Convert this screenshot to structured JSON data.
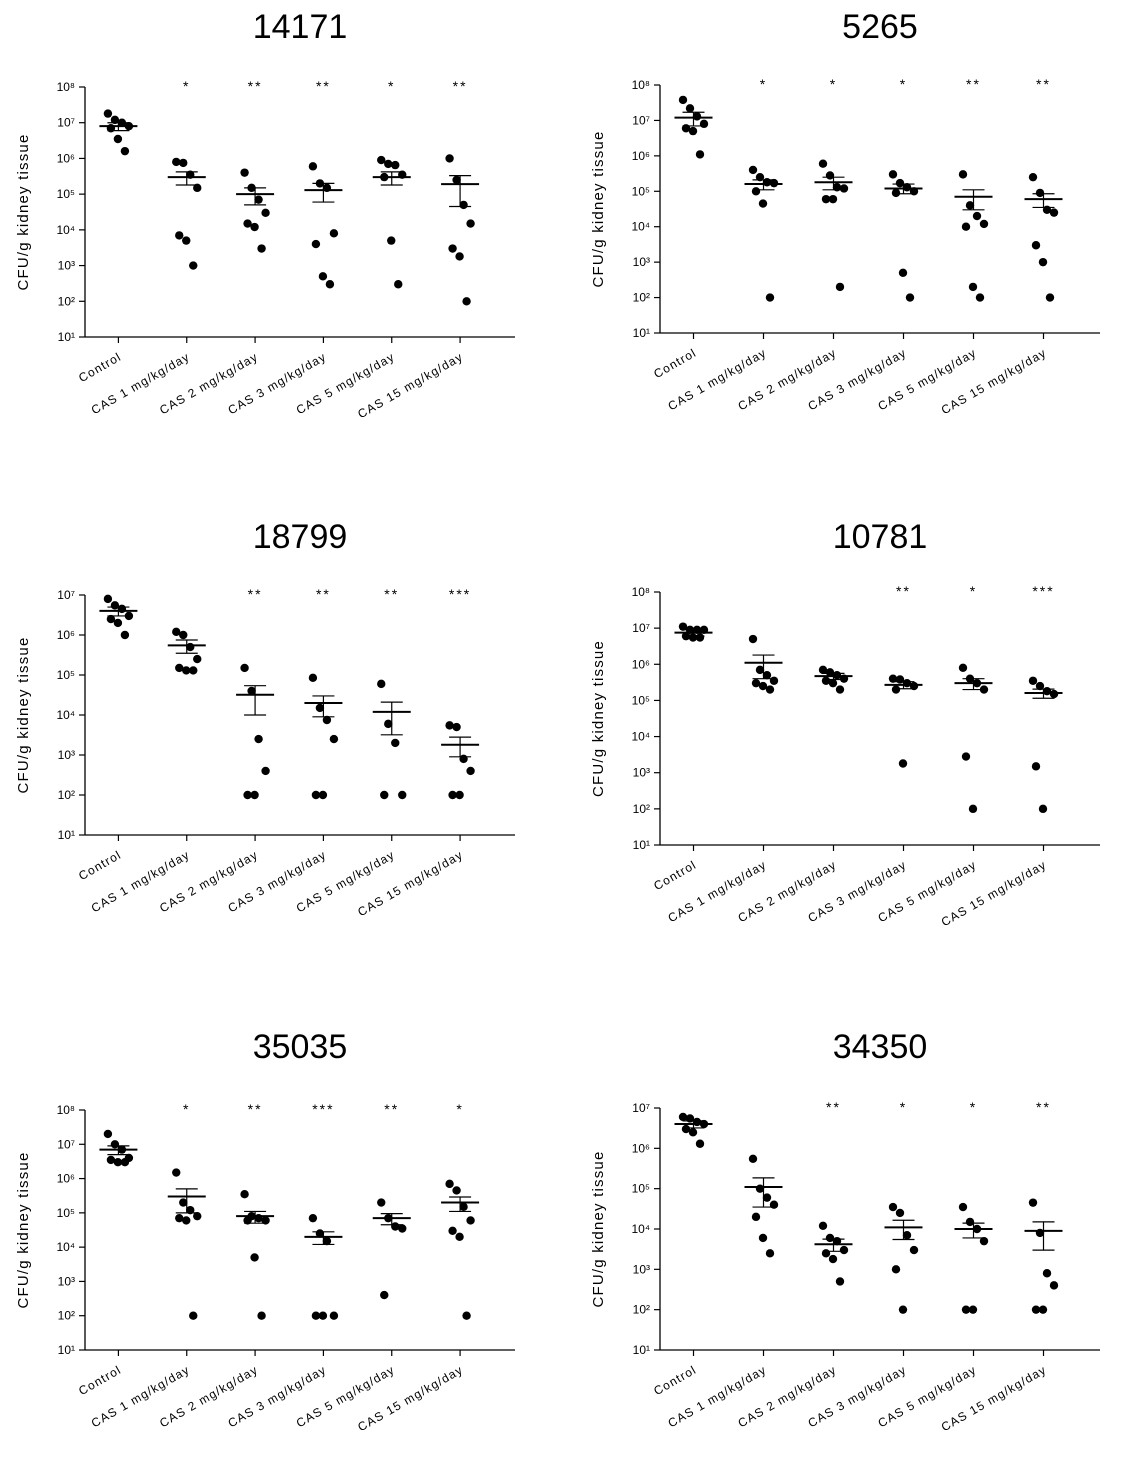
{
  "figure": {
    "ylabel": "CFU/g kidney tissue",
    "categories": [
      "Control",
      "CAS 1 mg/kg/day",
      "CAS 2 mg/kg/day",
      "CAS 3 mg/kg/day",
      "CAS 5 mg/kg/day",
      "CAS 15 mg/kg/day"
    ]
  },
  "chart_data": [
    {
      "type": "scatter",
      "title": "14171",
      "ylabel": "CFU/g kidney tissue",
      "yscale": "log",
      "ylim": [
        10,
        100000000
      ],
      "ytick_exponents": [
        1,
        2,
        3,
        4,
        5,
        6,
        7,
        8
      ],
      "categories": [
        "Control",
        "CAS 1 mg/kg/day",
        "CAS 2 mg/kg/day",
        "CAS 3 mg/kg/day",
        "CAS 5 mg/kg/day",
        "CAS 15 mg/kg/day"
      ],
      "significance": [
        "",
        "*",
        "**",
        "**",
        "*",
        "**"
      ],
      "mean": [
        8000000,
        300000,
        100000,
        130000,
        300000,
        190000
      ],
      "sem_low": [
        6000000,
        180000,
        50000,
        60000,
        180000,
        45000
      ],
      "sem_high": [
        10000000,
        420000,
        150000,
        200000,
        420000,
        330000
      ],
      "points": [
        [
          18000000,
          12000000,
          10000000,
          8000000,
          7000000,
          3500000,
          1600000
        ],
        [
          800000,
          750000,
          350000,
          150000,
          7000,
          5000,
          1000
        ],
        [
          400000,
          150000,
          70000,
          30000,
          15000,
          12000,
          3000
        ],
        [
          600000,
          200000,
          150000,
          8000,
          4000,
          500,
          300
        ],
        [
          900000,
          700000,
          650000,
          350000,
          300000,
          5000,
          300
        ],
        [
          1000000,
          250000,
          50000,
          15000,
          3000,
          1800,
          100
        ]
      ]
    },
    {
      "type": "scatter",
      "title": "5265",
      "ylabel": "CFU/g kidney tissue",
      "yscale": "log",
      "ylim": [
        10,
        100000000
      ],
      "ytick_exponents": [
        1,
        2,
        3,
        4,
        5,
        6,
        7,
        8
      ],
      "categories": [
        "Control",
        "CAS 1 mg/kg/day",
        "CAS 2 mg/kg/day",
        "CAS 3 mg/kg/day",
        "CAS 5 mg/kg/day",
        "CAS 15 mg/kg/day"
      ],
      "significance": [
        "",
        "*",
        "*",
        "*",
        "**",
        "**"
      ],
      "mean": [
        12000000,
        160000,
        180000,
        120000,
        70000,
        60000
      ],
      "sem_low": [
        7000000,
        110000,
        110000,
        85000,
        30000,
        35000
      ],
      "sem_high": [
        17000000,
        210000,
        250000,
        160000,
        110000,
        85000
      ],
      "points": [
        [
          38000000,
          22000000,
          13000000,
          8000000,
          6000000,
          5000000,
          1100000
        ],
        [
          400000,
          250000,
          180000,
          170000,
          100000,
          45000,
          100
        ],
        [
          600000,
          280000,
          130000,
          120000,
          60000,
          60000,
          200
        ],
        [
          300000,
          170000,
          130000,
          100000,
          90000,
          500,
          100
        ],
        [
          300000,
          40000,
          20000,
          12000,
          10000,
          200,
          100
        ],
        [
          250000,
          90000,
          30000,
          25000,
          3000,
          1000,
          100
        ]
      ]
    },
    {
      "type": "scatter",
      "title": "18799",
      "ylabel": "CFU/g kidney tissue",
      "yscale": "log",
      "ylim": [
        10,
        10000000
      ],
      "ytick_exponents": [
        1,
        2,
        3,
        4,
        5,
        6,
        7
      ],
      "categories": [
        "Control",
        "CAS 1 mg/kg/day",
        "CAS 2 mg/kg/day",
        "CAS 3 mg/kg/day",
        "CAS 5 mg/kg/day",
        "CAS 15 mg/kg/day"
      ],
      "significance": [
        "",
        "",
        "**",
        "**",
        "**",
        "***"
      ],
      "mean": [
        4000000,
        550000,
        32000,
        20000,
        12000,
        1800
      ],
      "sem_low": [
        3000000,
        350000,
        10000,
        9000,
        3200,
        900
      ],
      "sem_high": [
        5000000,
        750000,
        54000,
        30000,
        21000,
        2800
      ],
      "points": [
        [
          8000000,
          5500000,
          4500000,
          3000000,
          2500000,
          2000000,
          1000000
        ],
        [
          1200000,
          1000000,
          500000,
          250000,
          150000,
          130000,
          130000
        ],
        [
          150000,
          40000,
          2500,
          400,
          100,
          100
        ],
        [
          85000,
          15000,
          7500,
          2500,
          100,
          100
        ],
        [
          60000,
          6000,
          2000,
          100,
          100
        ],
        [
          5500,
          5000,
          800,
          400,
          100,
          100
        ]
      ]
    },
    {
      "type": "scatter",
      "title": "10781",
      "ylabel": "CFU/g kidney tissue",
      "yscale": "log",
      "ylim": [
        10,
        100000000
      ],
      "ytick_exponents": [
        1,
        2,
        3,
        4,
        5,
        6,
        7,
        8
      ],
      "categories": [
        "Control",
        "CAS 1 mg/kg/day",
        "CAS 2 mg/kg/day",
        "CAS 3 mg/kg/day",
        "CAS 5 mg/kg/day",
        "CAS 15 mg/kg/day"
      ],
      "significance": [
        "",
        "",
        "",
        "**",
        "*",
        "***"
      ],
      "mean": [
        7500000,
        1100000,
        470000,
        270000,
        300000,
        160000
      ],
      "sem_low": [
        6000000,
        400000,
        380000,
        210000,
        200000,
        115000
      ],
      "sem_high": [
        9000000,
        1800000,
        560000,
        330000,
        400000,
        205000
      ],
      "points": [
        [
          11000000,
          9000000,
          9000000,
          9000000,
          6000000,
          5500000,
          5500000
        ],
        [
          5000000,
          700000,
          500000,
          350000,
          300000,
          250000,
          200000
        ],
        [
          700000,
          600000,
          500000,
          400000,
          350000,
          300000,
          200000
        ],
        [
          400000,
          380000,
          300000,
          250000,
          200000,
          1800
        ],
        [
          800000,
          400000,
          300000,
          200000,
          2800,
          100
        ],
        [
          350000,
          250000,
          180000,
          150000,
          1500,
          100
        ]
      ]
    },
    {
      "type": "scatter",
      "title": "35035",
      "ylabel": "CFU/g kidney tissue",
      "yscale": "log",
      "ylim": [
        10,
        100000000
      ],
      "ytick_exponents": [
        1,
        2,
        3,
        4,
        5,
        6,
        7,
        8
      ],
      "categories": [
        "Control",
        "CAS 1 mg/kg/day",
        "CAS 2 mg/kg/day",
        "CAS 3 mg/kg/day",
        "CAS 5 mg/kg/day",
        "CAS 15 mg/kg/day"
      ],
      "significance": [
        "",
        "*",
        "**",
        "***",
        "**",
        "*"
      ],
      "mean": [
        7000000,
        300000,
        80000,
        20000,
        70000,
        200000
      ],
      "sem_low": [
        5000000,
        100000,
        50000,
        12000,
        45000,
        110000
      ],
      "sem_high": [
        9000000,
        500000,
        110000,
        28000,
        95000,
        290000
      ],
      "points": [
        [
          20000000,
          10000000,
          7000000,
          4000000,
          3500000,
          3000000,
          3000000
        ],
        [
          1500000,
          200000,
          120000,
          80000,
          70000,
          60000,
          100
        ],
        [
          350000,
          80000,
          70000,
          60000,
          60000,
          5000,
          100
        ],
        [
          70000,
          25000,
          15000,
          100,
          100,
          100
        ],
        [
          200000,
          70000,
          40000,
          35000,
          400
        ],
        [
          700000,
          450000,
          150000,
          60000,
          30000,
          20000,
          100
        ]
      ]
    },
    {
      "type": "scatter",
      "title": "34350",
      "ylabel": "CFU/g kidney tissue",
      "yscale": "log",
      "ylim": [
        10,
        10000000
      ],
      "ytick_exponents": [
        1,
        2,
        3,
        4,
        5,
        6,
        7
      ],
      "categories": [
        "Control",
        "CAS 1 mg/kg/day",
        "CAS 2 mg/kg/day",
        "CAS 3 mg/kg/day",
        "CAS 5 mg/kg/day",
        "CAS 15 mg/kg/day"
      ],
      "significance": [
        "",
        "",
        "**",
        "*",
        "*",
        "**"
      ],
      "mean": [
        4000000,
        110000,
        4200,
        11000,
        10000,
        9000
      ],
      "sem_low": [
        3200000,
        35000,
        2800,
        5500,
        6000,
        3000
      ],
      "sem_high": [
        4800000,
        185000,
        5600,
        16500,
        14000,
        15000
      ],
      "points": [
        [
          6000000,
          5500000,
          4500000,
          4000000,
          3000000,
          2500000,
          1300000
        ],
        [
          550000,
          100000,
          60000,
          40000,
          20000,
          6000,
          2500
        ],
        [
          12000,
          6000,
          5000,
          3000,
          2500,
          1800,
          500
        ],
        [
          35000,
          25000,
          7000,
          3000,
          1000,
          100
        ],
        [
          35000,
          15000,
          10000,
          5000,
          100,
          100
        ],
        [
          45000,
          8000,
          800,
          400,
          100,
          100
        ]
      ]
    }
  ]
}
